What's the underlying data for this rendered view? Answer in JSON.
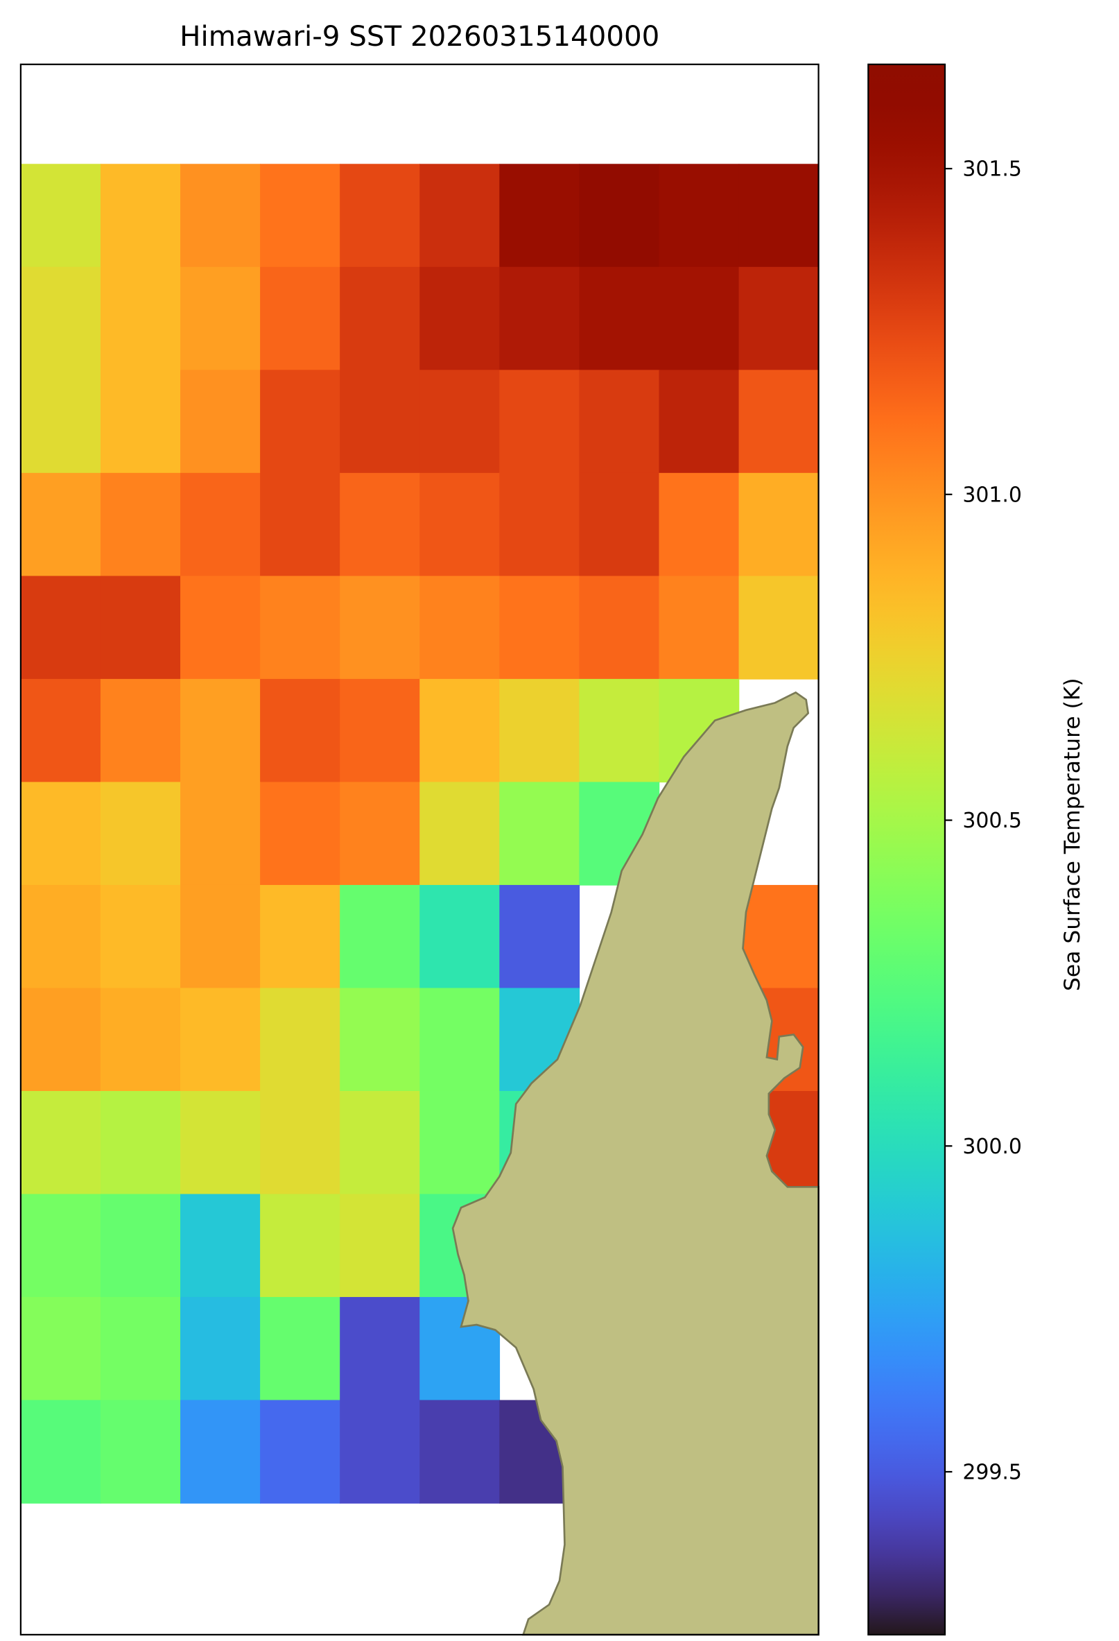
{
  "chart_data": {
    "type": "heatmap",
    "title": "Himawari-9 SST 20260315140000",
    "colorbar_label": "Sea Surface Temperature (K)",
    "colormap": "turbo",
    "clim": [
      299.25,
      301.66
    ],
    "cticks": [
      {
        "value": 299.5,
        "label": "299.5"
      },
      {
        "value": 300,
        "label": "300.0"
      },
      {
        "value": 300.5,
        "label": "300.5"
      },
      {
        "value": 301,
        "label": "301.0"
      },
      {
        "value": 301.5,
        "label": "301.5"
      }
    ],
    "values": [
      [
        300.65,
        300.85,
        301.0,
        301.1,
        301.25,
        301.35,
        301.55,
        301.6,
        301.55,
        301.55
      ],
      [
        300.7,
        300.85,
        300.95,
        301.15,
        301.3,
        301.4,
        301.45,
        301.5,
        301.5,
        301.4
      ],
      [
        300.7,
        300.85,
        301.0,
        301.25,
        301.3,
        301.3,
        301.25,
        301.3,
        301.4,
        301.2
      ],
      [
        300.95,
        301.05,
        301.15,
        301.25,
        301.15,
        301.2,
        301.25,
        301.3,
        301.1,
        300.9
      ],
      [
        301.3,
        301.3,
        301.1,
        301.05,
        301.0,
        301.05,
        301.1,
        301.15,
        301.05,
        300.8
      ],
      [
        301.2,
        301.05,
        300.95,
        301.2,
        301.15,
        300.85,
        300.75,
        300.6,
        300.55,
        null
      ],
      [
        300.85,
        300.8,
        300.95,
        301.1,
        301.05,
        300.7,
        300.45,
        300.25,
        null,
        null
      ],
      [
        300.9,
        300.85,
        300.95,
        300.85,
        300.3,
        300.05,
        299.5,
        null,
        null,
        301.1
      ],
      [
        300.95,
        300.9,
        300.85,
        300.7,
        300.45,
        300.35,
        299.9,
        null,
        null,
        301.2
      ],
      [
        300.6,
        300.55,
        300.65,
        300.7,
        300.6,
        300.35,
        300.1,
        null,
        null,
        301.3
      ],
      [
        300.35,
        300.3,
        299.9,
        300.6,
        300.65,
        300.2,
        null,
        null,
        null,
        null
      ],
      [
        300.4,
        300.35,
        299.85,
        300.3,
        299.45,
        299.75,
        null,
        null,
        null,
        null
      ],
      [
        300.25,
        300.3,
        299.7,
        299.55,
        299.45,
        299.4,
        299.35,
        null,
        null,
        null
      ]
    ]
  }
}
